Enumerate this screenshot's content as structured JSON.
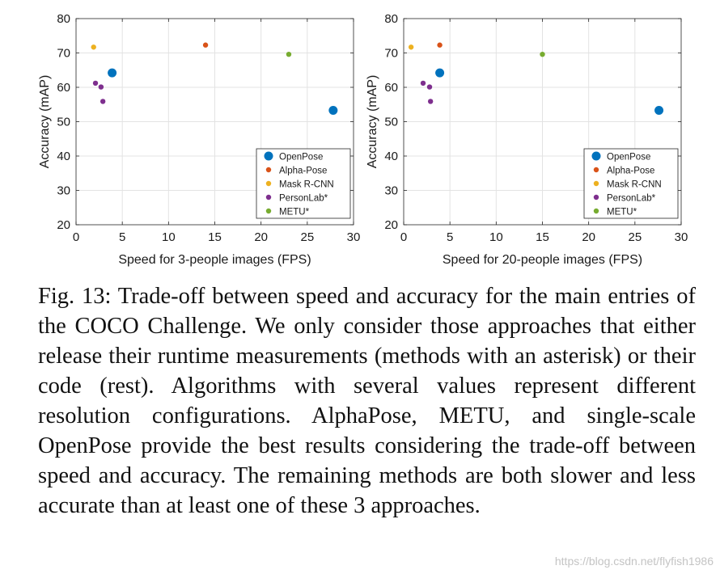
{
  "chart_data": [
    {
      "type": "scatter",
      "title": "",
      "xlabel": "Speed for 3-people images (FPS)",
      "ylabel": "Accuracy (mAP)",
      "xlim": [
        0,
        30
      ],
      "ylim": [
        20,
        80
      ],
      "xticks": [
        0,
        5,
        10,
        15,
        20,
        25,
        30
      ],
      "yticks": [
        20,
        30,
        40,
        50,
        60,
        70,
        80
      ],
      "grid": true,
      "legend_position": "bottom-right",
      "series": [
        {
          "name": "OpenPose",
          "color": "#0072BD",
          "marker": "large",
          "points": [
            [
              3.9,
              64.2
            ],
            [
              27.8,
              53.3
            ]
          ]
        },
        {
          "name": "Alpha-Pose",
          "color": "#D95319",
          "marker": "small",
          "points": [
            [
              14.0,
              72.3
            ]
          ]
        },
        {
          "name": "Mask R-CNN",
          "color": "#EDB120",
          "marker": "small",
          "points": [
            [
              1.9,
              71.7
            ]
          ]
        },
        {
          "name": "PersonLab*",
          "color": "#7E2F8E",
          "marker": "small",
          "points": [
            [
              2.1,
              61.2
            ],
            [
              2.7,
              60.1
            ],
            [
              2.9,
              55.9
            ]
          ]
        },
        {
          "name": "METU*",
          "color": "#77AC30",
          "marker": "small",
          "points": [
            [
              23.0,
              69.6
            ]
          ]
        }
      ]
    },
    {
      "type": "scatter",
      "title": "",
      "xlabel": "Speed for 20-people images (FPS)",
      "ylabel": "Accuracy (mAP)",
      "xlim": [
        0,
        30
      ],
      "ylim": [
        20,
        80
      ],
      "xticks": [
        0,
        5,
        10,
        15,
        20,
        25,
        30
      ],
      "yticks": [
        20,
        30,
        40,
        50,
        60,
        70,
        80
      ],
      "grid": true,
      "legend_position": "bottom-right",
      "series": [
        {
          "name": "OpenPose",
          "color": "#0072BD",
          "marker": "large",
          "points": [
            [
              3.9,
              64.2
            ],
            [
              27.6,
              53.3
            ]
          ]
        },
        {
          "name": "Alpha-Pose",
          "color": "#D95319",
          "marker": "small",
          "points": [
            [
              3.9,
              72.3
            ]
          ]
        },
        {
          "name": "Mask R-CNN",
          "color": "#EDB120",
          "marker": "small",
          "points": [
            [
              0.8,
              71.7
            ]
          ]
        },
        {
          "name": "PersonLab*",
          "color": "#7E2F8E",
          "marker": "small",
          "points": [
            [
              2.1,
              61.2
            ],
            [
              2.8,
              60.1
            ],
            [
              2.9,
              55.9
            ]
          ]
        },
        {
          "name": "METU*",
          "color": "#77AC30",
          "marker": "small",
          "points": [
            [
              15.0,
              69.6
            ]
          ]
        }
      ]
    }
  ],
  "caption": "Fig. 13: Trade-off between speed and accuracy for the main entries of the COCO Challenge. We only consider those approaches that either release their runtime measurements (methods with an asterisk) or their code (rest). Algorithms with several values represent different resolution configu­rations. AlphaPose, METU, and single-scale OpenPose pro­vide the best results considering the trade-off between speed and accuracy. The remaining methods are both slower and less accurate than at least one of these 3 approaches.",
  "watermark": "https://blog.csdn.net/flyfish1986"
}
